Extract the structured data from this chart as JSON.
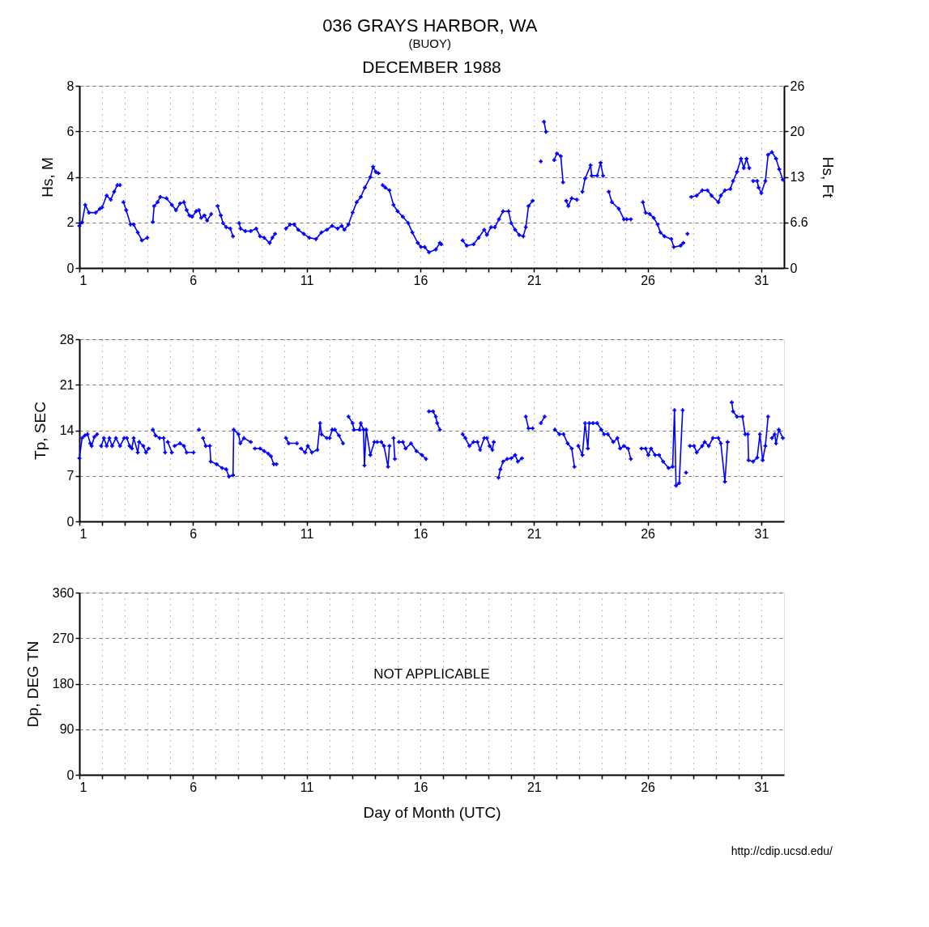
{
  "chart_data": [
    {
      "type": "line",
      "title": "036 GRAYS HARBOR, WA",
      "subtitle": "(BUOY)",
      "annotations": [
        "DECEMBER 1988"
      ],
      "ylabel": "Hs, M",
      "y2label": "Hs, Ft",
      "xlim": [
        1,
        32
      ],
      "xticks": [
        1,
        {
          "value": 2,
          "label": null
        },
        {
          "value": 3,
          "label": null
        },
        {
          "value": 4,
          "label": null
        },
        {
          "value": 5,
          "label": null
        },
        6,
        {
          "value": 7,
          "label": null
        },
        {
          "value": 8,
          "label": null
        },
        {
          "value": 9,
          "label": null
        },
        {
          "value": 10,
          "label": null
        },
        11,
        {
          "value": 12,
          "label": null
        },
        {
          "value": 13,
          "label": null
        },
        {
          "value": 14,
          "label": null
        },
        {
          "value": 15,
          "label": null
        },
        16,
        {
          "value": 17,
          "label": null
        },
        {
          "value": 18,
          "label": null
        },
        {
          "value": 19,
          "label": null
        },
        {
          "value": 20,
          "label": null
        },
        21,
        {
          "value": 22,
          "label": null
        },
        {
          "value": 23,
          "label": null
        },
        {
          "value": 24,
          "label": null
        },
        {
          "value": 25,
          "label": null
        },
        26,
        {
          "value": 27,
          "label": null
        },
        {
          "value": 28,
          "label": null
        },
        {
          "value": 29,
          "label": null
        },
        {
          "value": 30,
          "label": null
        },
        31
      ],
      "ylim": [
        0,
        8
      ],
      "yticks": [
        0,
        2,
        4,
        6,
        8
      ],
      "y2lim": [
        0,
        26.25
      ],
      "y2ticks": [
        0,
        {
          "value": 6.56,
          "label": "6.6"
        },
        {
          "value": 13.12,
          "label": "13"
        },
        {
          "value": 19.69,
          "label": "20"
        },
        {
          "value": 26.25,
          "label": "26"
        }
      ],
      "grid": true,
      "marker": "cross",
      "line_style": "solid",
      "series": [
        {
          "color": "#0000ff",
          "x": [
            1.0,
            1.12,
            1.26,
            1.42,
            1.72,
            1.9,
            2.0,
            2.2,
            2.38,
            2.53,
            2.67,
            2.79,
            2.86,
            2.94,
            3.06,
            3.25,
            3.39,
            3.57,
            3.75,
            3.99,
            4.1,
            4.23,
            4.29,
            4.44,
            4.56,
            4.83,
            5.07,
            5.25,
            5.43,
            5.6,
            5.72,
            5.84,
            5.96,
            6.14,
            6.26,
            6.36,
            6.5,
            6.62,
            6.8,
            6.95,
            7.08,
            7.22,
            7.32,
            7.46,
            7.64,
            7.76,
            7.9,
            8.03,
            8.09,
            8.3,
            8.54,
            8.78,
            8.95,
            9.13,
            9.37,
            9.49,
            9.61,
            9.85,
            10.09,
            10.27,
            10.45,
            10.63,
            10.87,
            11.11,
            11.41,
            11.65,
            11.89,
            12.12,
            12.36,
            12.54,
            12.66,
            12.84,
            13.02,
            13.2,
            13.38,
            13.56,
            13.8,
            13.92,
            14.04,
            14.16,
            14.25,
            14.34,
            14.46,
            14.64,
            14.82,
            15.0,
            15.23,
            15.47,
            15.65,
            15.89,
            16.03,
            16.19,
            16.38,
            16.68,
            16.86,
            16.92,
            17.4,
            17.86,
            18.04,
            18.34,
            18.57,
            18.81,
            18.93,
            19.11,
            19.28,
            19.46,
            19.64,
            19.88,
            20.0,
            20.17,
            20.35,
            20.53,
            20.64,
            20.76,
            20.94,
            21.1,
            21.3,
            21.37,
            21.44,
            21.53,
            21.7,
            21.89,
            22.01,
            22.18,
            22.28,
            22.35,
            22.42,
            22.51,
            22.66,
            22.89,
            23.0,
            23.13,
            23.25,
            23.49,
            23.54,
            23.78,
            23.93,
            24.04,
            24.15,
            24.29,
            24.43,
            24.73,
            24.96,
            25.08,
            25.26,
            25.5,
            25.79,
            25.91,
            26.09,
            26.27,
            26.44,
            26.56,
            26.74,
            27.04,
            27.15,
            27.45,
            27.57,
            27.66,
            27.75,
            27.83,
            27.92,
            28.16,
            28.4,
            28.63,
            28.81,
            29.11,
            29.22,
            29.4,
            29.64,
            29.76,
            29.93,
            30.11,
            30.23,
            30.35,
            30.47,
            30.55,
            30.64,
            30.82,
            30.88,
            31.0,
            31.18,
            31.3,
            31.47,
            31.65,
            31.79,
            31.95
          ],
          "values": [
            1.85,
            2.0,
            2.77,
            2.43,
            2.43,
            2.6,
            2.66,
            3.18,
            3.0,
            3.35,
            3.64,
            3.64,
            null,
            2.89,
            2.54,
            1.91,
            1.91,
            1.56,
            1.21,
            1.33,
            null,
            2.02,
            2.72,
            2.89,
            3.12,
            3.06,
            2.77,
            2.54,
            2.83,
            2.89,
            2.54,
            2.31,
            2.25,
            2.49,
            2.54,
            2.2,
            2.31,
            2.08,
            2.37,
            null,
            2.72,
            2.31,
            1.97,
            1.79,
            1.73,
            1.39,
            null,
            1.97,
            1.73,
            1.62,
            1.62,
            1.73,
            1.39,
            1.33,
            1.1,
            1.33,
            1.5,
            null,
            1.73,
            1.91,
            1.91,
            1.68,
            1.5,
            1.33,
            1.27,
            1.56,
            1.68,
            1.85,
            1.73,
            1.85,
            1.68,
            1.91,
            2.43,
            2.89,
            3.12,
            3.53,
            3.99,
            4.45,
            4.22,
            4.16,
            null,
            3.64,
            3.53,
            3.41,
            2.77,
            2.49,
            2.25,
            1.97,
            1.56,
            1.1,
            0.92,
            0.92,
            0.69,
            0.81,
            1.1,
            1.04,
            null,
            1.21,
            0.98,
            1.04,
            1.33,
            1.68,
            1.45,
            1.79,
            1.79,
            2.14,
            2.49,
            2.49,
            1.97,
            1.68,
            1.45,
            1.39,
            1.79,
            2.72,
            2.95,
            null,
            4.68,
            null,
            6.42,
            5.98,
            null,
            4.74,
            5.03,
            4.91,
            3.76,
            null,
            2.95,
            2.72,
            3.06,
            3.0,
            null,
            3.35,
            3.93,
            4.51,
            4.05,
            4.05,
            4.62,
            4.05,
            null,
            3.35,
            2.89,
            2.6,
            2.14,
            2.14,
            2.14,
            null,
            2.89,
            2.43,
            2.37,
            2.2,
            1.91,
            1.56,
            1.39,
            1.27,
            0.92,
            0.98,
            1.1,
            null,
            1.5,
            null,
            3.12,
            3.18,
            3.41,
            3.41,
            3.18,
            2.89,
            3.18,
            3.41,
            3.47,
            3.82,
            4.22,
            4.8,
            4.39,
            4.8,
            4.39,
            null,
            3.82,
            3.82,
            3.53,
            3.29,
            3.82,
            4.97,
            5.09,
            4.8,
            4.34,
            3.87
          ]
        }
      ]
    },
    {
      "type": "line",
      "ylabel": "Tp, SEC",
      "xlim": [
        1,
        32
      ],
      "xticks": [
        1,
        {
          "value": 2,
          "label": null
        },
        {
          "value": 3,
          "label": null
        },
        {
          "value": 4,
          "label": null
        },
        {
          "value": 5,
          "label": null
        },
        6,
        {
          "value": 7,
          "label": null
        },
        {
          "value": 8,
          "label": null
        },
        {
          "value": 9,
          "label": null
        },
        {
          "value": 10,
          "label": null
        },
        11,
        {
          "value": 12,
          "label": null
        },
        {
          "value": 13,
          "label": null
        },
        {
          "value": 14,
          "label": null
        },
        {
          "value": 15,
          "label": null
        },
        16,
        {
          "value": 17,
          "label": null
        },
        {
          "value": 18,
          "label": null
        },
        {
          "value": 19,
          "label": null
        },
        {
          "value": 20,
          "label": null
        },
        21,
        {
          "value": 22,
          "label": null
        },
        {
          "value": 23,
          "label": null
        },
        {
          "value": 24,
          "label": null
        },
        {
          "value": 25,
          "label": null
        },
        26,
        {
          "value": 27,
          "label": null
        },
        {
          "value": 28,
          "label": null
        },
        {
          "value": 29,
          "label": null
        },
        {
          "value": 30,
          "label": null
        },
        31
      ],
      "ylim": [
        0,
        28
      ],
      "yticks": [
        0,
        7,
        14,
        21,
        28
      ],
      "grid": true,
      "marker": "cross",
      "line_style": "solid",
      "series": [
        {
          "color": "#0000ff",
          "x": [
            1.0,
            1.12,
            1.24,
            1.36,
            1.48,
            1.54,
            1.66,
            1.78,
            1.87,
            1.96,
            2.08,
            2.2,
            2.32,
            2.44,
            2.61,
            2.79,
            2.97,
            3.09,
            3.21,
            3.31,
            3.39,
            3.57,
            3.63,
            3.81,
            3.93,
            4.05,
            4.14,
            4.23,
            4.35,
            4.53,
            4.71,
            4.77,
            4.83,
            4.89,
            5.07,
            5.13,
            5.19,
            5.43,
            5.6,
            5.72,
            6.02,
            6.14,
            6.26,
            6.35,
            6.44,
            6.56,
            6.74,
            6.78,
            7.04,
            7.28,
            7.46,
            7.58,
            7.76,
            7.79,
            8.0,
            8.08,
            8.24,
            8.54,
            8.63,
            8.72,
            8.95,
            9.13,
            9.31,
            9.43,
            9.55,
            9.67,
            9.88,
            10.09,
            10.21,
            10.57,
            10.66,
            10.75,
            10.93,
            11.05,
            11.23,
            11.47,
            11.59,
            11.65,
            11.89,
            12.01,
            12.12,
            12.24,
            12.42,
            12.6,
            12.72,
            12.84,
            13.02,
            13.08,
            13.32,
            13.38,
            13.5,
            13.54,
            13.62,
            13.8,
            13.98,
            14.1,
            14.19,
            14.28,
            14.4,
            14.58,
            14.64,
            14.73,
            14.82,
            14.88,
            14.97,
            15.06,
            15.23,
            15.35,
            15.59,
            15.83,
            16.07,
            16.25,
            16.31,
            16.38,
            16.56,
            16.68,
            16.74,
            16.86,
            17.4,
            17.86,
            17.98,
            18.16,
            18.34,
            18.51,
            18.63,
            18.81,
            18.93,
            19.05,
            19.17,
            19.23,
            19.33,
            19.44,
            19.52,
            19.64,
            19.82,
            20.0,
            20.17,
            20.29,
            20.47,
            20.55,
            20.64,
            20.76,
            20.94,
            21.1,
            21.3,
            21.47,
            21.7,
            21.92,
            22.12,
            22.3,
            22.48,
            22.66,
            22.78,
            22.86,
            22.95,
            23.13,
            23.25,
            23.37,
            23.43,
            23.6,
            23.78,
            23.96,
            24.08,
            24.25,
            24.49,
            24.67,
            24.79,
            24.96,
            25.14,
            25.26,
            25.5,
            25.73,
            25.91,
            26.03,
            26.15,
            26.33,
            26.5,
            26.68,
            26.92,
            27.1,
            27.18,
            27.25,
            27.39,
            27.54,
            27.6,
            27.69,
            27.78,
            27.86,
            28.04,
            28.16,
            28.4,
            28.51,
            28.69,
            28.87,
            29.11,
            29.22,
            29.4,
            29.52,
            29.6,
            29.7,
            29.76,
            29.93,
            30.17,
            30.29,
            30.41,
            30.44,
            30.64,
            30.82,
            30.94,
            31.06,
            31.18,
            31.3,
            31.38,
            31.47,
            31.59,
            31.65,
            31.77,
            31.95
          ],
          "values": [
            9.7,
            12.8,
            13.2,
            13.4,
            12.0,
            11.6,
            13.0,
            13.4,
            null,
            11.6,
            12.8,
            11.6,
            12.8,
            11.6,
            12.8,
            11.6,
            12.8,
            12.8,
            11.6,
            11.2,
            12.8,
            10.6,
            12.2,
            11.6,
            10.6,
            11.2,
            null,
            14.1,
            13.2,
            12.8,
            12.8,
            10.6,
            null,
            12.2,
            10.6,
            null,
            11.6,
            12.0,
            11.6,
            10.6,
            10.6,
            null,
            14.1,
            null,
            12.8,
            11.6,
            11.6,
            9.2,
            8.8,
            8.2,
            8.0,
            6.9,
            7.1,
            14.1,
            13.4,
            12.0,
            12.8,
            12.2,
            null,
            11.2,
            11.2,
            10.8,
            10.4,
            10.0,
            8.8,
            8.8,
            null,
            12.8,
            12.0,
            12.0,
            null,
            11.2,
            10.6,
            11.6,
            10.6,
            11.0,
            15.1,
            13.4,
            12.8,
            12.8,
            14.1,
            14.1,
            13.2,
            12.0,
            null,
            16.1,
            15.1,
            14.1,
            14.1,
            15.1,
            14.1,
            8.6,
            14.1,
            10.2,
            12.2,
            12.2,
            null,
            12.2,
            11.6,
            8.4,
            11.6,
            null,
            12.8,
            9.6,
            null,
            12.2,
            12.2,
            11.2,
            12.0,
            10.8,
            10.2,
            9.6,
            null,
            16.9,
            16.9,
            16.1,
            15.1,
            14.1,
            null,
            13.4,
            12.8,
            11.6,
            12.2,
            12.2,
            11.0,
            12.8,
            12.8,
            11.6,
            11.0,
            12.2,
            null,
            6.7,
            8.0,
            9.2,
            9.6,
            9.7,
            10.2,
            9.2,
            9.7,
            null,
            16.1,
            14.3,
            14.3,
            null,
            15.1,
            16.1,
            null,
            14.1,
            13.4,
            13.4,
            12.0,
            11.2,
            8.4,
            null,
            11.6,
            10.2,
            15.1,
            11.2,
            15.1,
            15.1,
            15.1,
            14.1,
            13.4,
            13.4,
            12.2,
            12.8,
            11.2,
            11.6,
            11.2,
            9.6,
            null,
            11.2,
            11.2,
            10.2,
            11.2,
            10.2,
            10.2,
            9.2,
            8.2,
            8.4,
            17.1,
            5.5,
            5.9,
            17.1,
            null,
            7.5,
            null,
            11.6,
            11.6,
            10.6,
            11.6,
            12.2,
            11.6,
            12.8,
            12.8,
            12.0,
            6.1,
            12.2,
            null,
            18.3,
            16.9,
            16.1,
            16.1,
            13.4,
            13.4,
            9.4,
            9.2,
            9.8,
            13.4,
            9.4,
            11.6,
            16.1,
            null,
            12.8,
            13.4,
            12.0,
            14.1,
            12.8
          ]
        }
      ]
    },
    {
      "type": "line",
      "ylabel": "Dp, DEG TN",
      "xlabel": "Day of Month (UTC)",
      "annotations": [
        "NOT APPLICABLE",
        "http://cdip.ucsd.edu/"
      ],
      "xlim": [
        1,
        32
      ],
      "xticks": [
        1,
        {
          "value": 2,
          "label": null
        },
        {
          "value": 3,
          "label": null
        },
        {
          "value": 4,
          "label": null
        },
        {
          "value": 5,
          "label": null
        },
        6,
        {
          "value": 7,
          "label": null
        },
        {
          "value": 8,
          "label": null
        },
        {
          "value": 9,
          "label": null
        },
        {
          "value": 10,
          "label": null
        },
        11,
        {
          "value": 12,
          "label": null
        },
        {
          "value": 13,
          "label": null
        },
        {
          "value": 14,
          "label": null
        },
        {
          "value": 15,
          "label": null
        },
        16,
        {
          "value": 17,
          "label": null
        },
        {
          "value": 18,
          "label": null
        },
        {
          "value": 19,
          "label": null
        },
        {
          "value": 20,
          "label": null
        },
        21,
        {
          "value": 22,
          "label": null
        },
        {
          "value": 23,
          "label": null
        },
        {
          "value": 24,
          "label": null
        },
        {
          "value": 25,
          "label": null
        },
        26,
        {
          "value": 27,
          "label": null
        },
        {
          "value": 28,
          "label": null
        },
        {
          "value": 29,
          "label": null
        },
        {
          "value": 30,
          "label": null
        },
        31
      ],
      "ylim": [
        0,
        360
      ],
      "yticks": [
        0,
        90,
        180,
        270,
        360
      ],
      "grid": true
    }
  ]
}
